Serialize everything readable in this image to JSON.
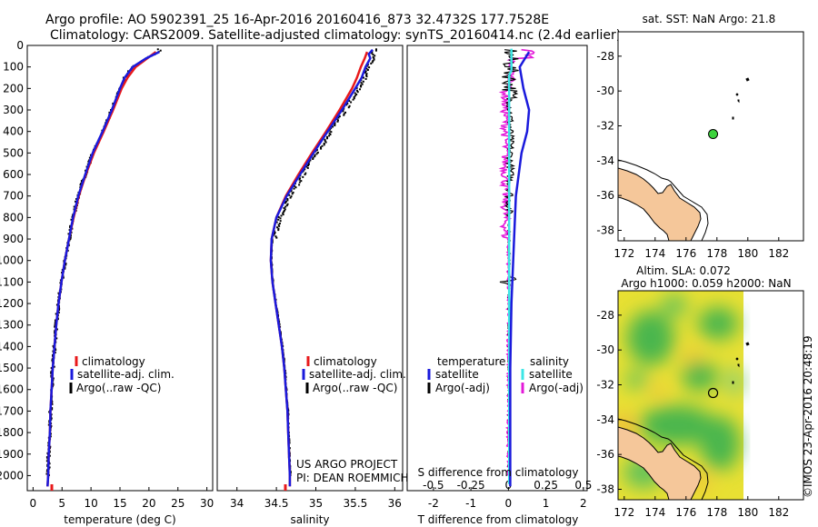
{
  "header": {
    "line1": "Argo profile: AO 5902391_25 16-Apr-2016 20160416_873 32.4732S 177.7528E",
    "line2": "Climatology: CARS2009. Satellite-adjusted climatology: synTS_20160414.nc (2.4d earlier)"
  },
  "colors": {
    "climatology": "#e8191b",
    "satellite": "#1a1adc",
    "argo": "#000000",
    "sal_satellite": "#3ce6e6",
    "sal_argo": "#e31ad8",
    "land": "#f5c79a"
  },
  "chart_data": [
    {
      "type": "line",
      "name": "temperature-profile",
      "xlabel": "temperature (deg C)",
      "ylabel": "",
      "xlim": [
        -1,
        31
      ],
      "ylim": [
        2070,
        0
      ],
      "xticks": [
        "0",
        "5",
        "10",
        "15",
        "20",
        "25",
        "30"
      ],
      "yticks": [
        "0",
        "100",
        "200",
        "300",
        "400",
        "500",
        "600",
        "700",
        "800",
        "900",
        "1000",
        "1100",
        "1200",
        "1300",
        "1400",
        "1500",
        "1600",
        "1700",
        "1800",
        "1900",
        "2000"
      ],
      "legend": [
        "climatology",
        "satellite-adj. clim.",
        "Argo(..raw -QC)"
      ],
      "series": [
        {
          "name": "satellite-adj. clim.",
          "depth": [
            30,
            60,
            100,
            150,
            200,
            300,
            400,
            500,
            600,
            700,
            800,
            900,
            1000,
            1100,
            1200,
            1300,
            1400,
            1500,
            1600,
            1700,
            1800,
            1900,
            2000,
            2050
          ],
          "values": [
            21.8,
            19.5,
            17.2,
            15.8,
            15.0,
            13.6,
            12.0,
            10.3,
            9.0,
            7.8,
            6.9,
            6.2,
            5.5,
            4.9,
            4.4,
            4.0,
            3.7,
            3.4,
            3.2,
            3.0,
            2.9,
            2.7,
            2.6,
            2.5
          ]
        },
        {
          "name": "climatology",
          "depth": [
            30,
            60,
            100,
            150,
            200,
            300,
            400,
            500,
            600,
            700,
            800,
            900,
            1000,
            1100,
            1200,
            1300,
            1400,
            1500,
            1600,
            1700,
            1800,
            1900,
            2000,
            2050
          ],
          "values": [
            21.2,
            19.7,
            17.7,
            16.3,
            15.3,
            13.8,
            12.2,
            10.5,
            9.1,
            7.9,
            7.0,
            6.2,
            5.5,
            4.9,
            4.4,
            4.0,
            3.7,
            3.4,
            3.2,
            3.0,
            2.9,
            2.7,
            2.6,
            2.5
          ]
        }
      ]
    },
    {
      "type": "line",
      "name": "salinity-profile",
      "xlabel": "salinity",
      "xlim": [
        33.75,
        36.1
      ],
      "ylim": [
        2070,
        0
      ],
      "xticks": [
        "34",
        "34.5",
        "35",
        "35.5",
        "36"
      ],
      "legend": [
        "climatology",
        "satellite-adj. clim.",
        "Argo(..raw -QC)"
      ],
      "credit": [
        "US ARGO PROJECT",
        "PI: DEAN ROEMMICH"
      ],
      "series": [
        {
          "name": "satellite-adj. clim.",
          "depth": [
            20,
            40,
            60,
            100,
            150,
            200,
            300,
            400,
            500,
            600,
            700,
            800,
            900,
            1000,
            1100,
            1200,
            1300,
            1400,
            1500,
            1600,
            1700,
            1800,
            1900,
            2000,
            2050
          ],
          "values": [
            35.72,
            35.67,
            35.69,
            35.63,
            35.58,
            35.5,
            35.33,
            35.15,
            34.97,
            34.8,
            34.63,
            34.5,
            34.44,
            34.43,
            34.45,
            34.49,
            34.53,
            34.57,
            34.6,
            34.62,
            34.64,
            34.65,
            34.66,
            34.67,
            34.67
          ]
        },
        {
          "name": "climatology",
          "depth": [
            30,
            60,
            100,
            150,
            200,
            300,
            400,
            500,
            600,
            700,
            800,
            900,
            1000,
            1100,
            1200,
            1300,
            1400,
            1500,
            1600,
            1700,
            1800,
            1900,
            2000,
            2050
          ],
          "values": [
            35.65,
            35.62,
            35.57,
            35.52,
            35.46,
            35.3,
            35.13,
            34.95,
            34.78,
            34.62,
            34.5,
            34.44,
            34.43,
            34.45,
            34.49,
            34.53,
            34.57,
            34.6,
            34.62,
            34.64,
            34.65,
            34.66,
            34.67,
            34.67
          ]
        }
      ]
    },
    {
      "type": "line",
      "name": "difference-profile",
      "xlabel": "T difference from climatology",
      "xlabel_top": "S difference from climatology",
      "xlim": [
        -2.7,
        2.1
      ],
      "ylim": [
        2070,
        0
      ],
      "xticks": [
        "-2",
        "-1",
        "0",
        "1",
        "2"
      ],
      "sticks": [
        "-0.5",
        "-0.25",
        "0",
        "0.25",
        "0.5"
      ],
      "legend_t_title": "temperature",
      "legend_s_title": "salinity",
      "legend_t": [
        "satellite",
        "Argo(-adj)"
      ],
      "legend_s": [
        "satellite",
        "Argo(-adj)"
      ],
      "series": [
        {
          "name": "T satellite",
          "depth": [
            30,
            100,
            200,
            300,
            400,
            500,
            700,
            900,
            1200,
            1500,
            1800,
            2050
          ],
          "values": [
            0.55,
            0.3,
            0.4,
            0.55,
            0.5,
            0.35,
            0.2,
            0.15,
            0.08,
            0.05,
            0.05,
            0.05
          ]
        }
      ]
    },
    {
      "type": "scatter",
      "name": "sst-map",
      "title": "sat. SST: NaN Argo: 21.8",
      "xlim": [
        171.6,
        183.6
      ],
      "ylim": [
        -38.6,
        -26.6
      ],
      "xticks": [
        "172",
        "174",
        "176",
        "178",
        "180",
        "182"
      ],
      "yticks": [
        "-28",
        "-30",
        "-32",
        "-34",
        "-36",
        "-38"
      ],
      "argo_position": {
        "lon": 177.75,
        "lat": -32.47
      }
    },
    {
      "type": "heatmap",
      "name": "sla-map",
      "title_line1": "Altim. SLA: 0.072",
      "title_line2": "Argo h1000: 0.059 h2000: NaN",
      "xlim": [
        171.6,
        183.6
      ],
      "ylim": [
        -38.6,
        -26.6
      ],
      "xticks": [
        "172",
        "174",
        "176",
        "178",
        "180",
        "182"
      ],
      "yticks": [
        "-28",
        "-30",
        "-32",
        "-34",
        "-36",
        "-38"
      ],
      "argo_position": {
        "lon": 177.75,
        "lat": -32.47
      }
    }
  ],
  "footer": {
    "stamp": "©IMOS 23-Apr-2016 20:48:19"
  }
}
